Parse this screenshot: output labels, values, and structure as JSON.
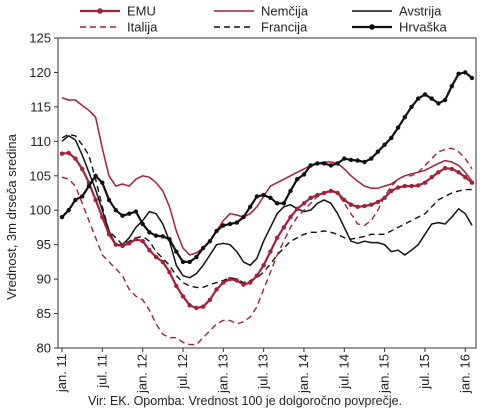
{
  "chart_data": {
    "type": "line",
    "title": "",
    "ylabel": "Vrednost, 3m drseča sredina",
    "xlabel": "",
    "ylim": [
      80,
      125
    ],
    "yticks": [
      80,
      85,
      90,
      95,
      100,
      105,
      110,
      115,
      120,
      125
    ],
    "x_start": "2011-01",
    "n_months": 62,
    "xtick_labels": [
      "jan. 11",
      "jul. 11",
      "jan. 12",
      "jul. 12",
      "jan. 13",
      "jul. 13",
      "jan. 14",
      "jul. 14",
      "jan. 15",
      "jul. 15",
      "jan. 16"
    ],
    "grid": false,
    "legend": "top",
    "series": [
      {
        "name": "EMU",
        "color": "#a3223a",
        "style": "solid-markers",
        "values": [
          108.2,
          108.3,
          107.5,
          106.0,
          104.0,
          101.5,
          99.0,
          96.5,
          95.0,
          94.8,
          95.2,
          95.8,
          95.5,
          94.2,
          93.2,
          92.5,
          91.0,
          89.0,
          87.5,
          86.2,
          85.8,
          86.0,
          87.0,
          88.5,
          89.5,
          90.0,
          89.8,
          89.2,
          89.5,
          90.5,
          92.0,
          94.0,
          96.0,
          97.5,
          99.0,
          100.2,
          101.0,
          101.8,
          102.2,
          102.5,
          102.8,
          102.5,
          101.5,
          100.8,
          100.5,
          100.6,
          100.8,
          101.2,
          101.8,
          102.8,
          103.3,
          103.5,
          103.5,
          103.6,
          104.0,
          104.8,
          105.5,
          106.1,
          106.0,
          105.5,
          104.8,
          104.0
        ]
      },
      {
        "name": "Nemčija",
        "color": "#a3223a",
        "style": "solid",
        "values": [
          116.3,
          116.0,
          116.0,
          115.2,
          114.5,
          113.5,
          109.0,
          105.0,
          103.5,
          103.8,
          103.5,
          104.5,
          105.0,
          104.8,
          104.0,
          102.8,
          100.5,
          97.0,
          94.5,
          93.5,
          93.8,
          94.5,
          95.5,
          97.0,
          98.5,
          99.5,
          99.3,
          99.0,
          99.5,
          100.5,
          102.0,
          103.5,
          104.0,
          104.5,
          105.0,
          105.5,
          106.0,
          106.5,
          106.8,
          107.0,
          107.0,
          106.8,
          106.0,
          105.0,
          104.2,
          103.5,
          103.2,
          103.2,
          103.5,
          103.8,
          104.5,
          105.0,
          105.3,
          105.5,
          105.8,
          106.3,
          106.8,
          107.2,
          107.0,
          106.5,
          105.5,
          104.2
        ]
      },
      {
        "name": "Avstrija",
        "color": "#111111",
        "style": "solid",
        "values": [
          110.0,
          110.8,
          110.2,
          108.0,
          105.5,
          103.0,
          100.0,
          97.0,
          95.0,
          95.0,
          96.0,
          97.5,
          98.5,
          99.8,
          99.5,
          98.0,
          95.5,
          92.0,
          90.5,
          90.2,
          90.8,
          92.0,
          93.5,
          95.0,
          95.2,
          95.0,
          94.0,
          92.5,
          92.0,
          93.0,
          95.5,
          97.5,
          99.5,
          100.5,
          100.8,
          100.2,
          99.8,
          100.0,
          101.0,
          101.5,
          101.0,
          99.5,
          97.5,
          95.5,
          95.2,
          95.5,
          95.3,
          95.3,
          95.0,
          94.0,
          94.2,
          93.5,
          94.2,
          95.0,
          96.5,
          98.0,
          98.2,
          98.0,
          99.0,
          100.2,
          99.5,
          97.8
        ]
      },
      {
        "name": "Italija",
        "color": "#a3223a",
        "style": "dashed",
        "values": [
          104.8,
          104.5,
          103.5,
          101.0,
          98.5,
          96.0,
          93.5,
          92.5,
          91.5,
          90.5,
          88.5,
          87.5,
          87.0,
          85.5,
          83.5,
          82.0,
          81.5,
          81.5,
          80.8,
          80.5,
          80.5,
          81.5,
          82.5,
          83.5,
          84.0,
          84.0,
          83.5,
          83.8,
          84.5,
          86.0,
          88.5,
          91.0,
          93.5,
          95.5,
          97.5,
          99.0,
          100.0,
          101.0,
          102.0,
          102.5,
          103.0,
          102.5,
          101.0,
          99.5,
          98.0,
          97.8,
          98.5,
          100.0,
          102.0,
          103.5,
          104.5,
          105.0,
          105.0,
          105.5,
          106.5,
          107.5,
          108.5,
          108.8,
          109.0,
          108.5,
          107.5,
          106.0
        ]
      },
      {
        "name": "Francija",
        "color": "#111111",
        "style": "dashed",
        "values": [
          110.5,
          111.0,
          110.8,
          109.5,
          108.0,
          104.5,
          100.5,
          97.0,
          96.0,
          95.0,
          95.5,
          96.0,
          96.2,
          95.5,
          94.0,
          93.0,
          92.0,
          90.5,
          89.5,
          89.0,
          88.8,
          88.8,
          89.2,
          89.5,
          89.8,
          90.2,
          90.0,
          89.5,
          89.8,
          90.2,
          91.0,
          92.2,
          93.5,
          94.5,
          95.5,
          96.0,
          96.5,
          96.8,
          96.8,
          97.0,
          96.8,
          96.5,
          96.0,
          95.8,
          96.0,
          96.2,
          96.5,
          96.5,
          96.5,
          97.0,
          97.5,
          98.0,
          98.5,
          99.0,
          99.5,
          100.5,
          101.5,
          102.0,
          102.5,
          102.8,
          103.0,
          103.0
        ]
      },
      {
        "name": "Hrvaška",
        "color": "#111111",
        "style": "solid-markers",
        "values": [
          99.0,
          100.0,
          101.5,
          102.0,
          103.5,
          105.0,
          104.0,
          101.5,
          100.0,
          99.2,
          99.5,
          99.8,
          98.0,
          96.8,
          96.3,
          96.2,
          95.8,
          94.0,
          92.5,
          92.5,
          93.2,
          94.5,
          95.5,
          97.0,
          97.8,
          98.0,
          98.2,
          99.0,
          100.5,
          102.0,
          102.2,
          101.8,
          101.0,
          101.0,
          102.8,
          104.5,
          105.2,
          106.5,
          106.8,
          106.8,
          106.5,
          106.8,
          107.5,
          107.3,
          107.2,
          107.0,
          107.5,
          108.5,
          109.5,
          110.5,
          112.0,
          113.5,
          115.0,
          116.2,
          116.8,
          116.2,
          115.5,
          116.0,
          118.0,
          119.8,
          120.0,
          119.2
        ]
      }
    ]
  },
  "source_note": "Vir: EK. Opomba: Vrednost 100 je dolgoročno povprečje."
}
